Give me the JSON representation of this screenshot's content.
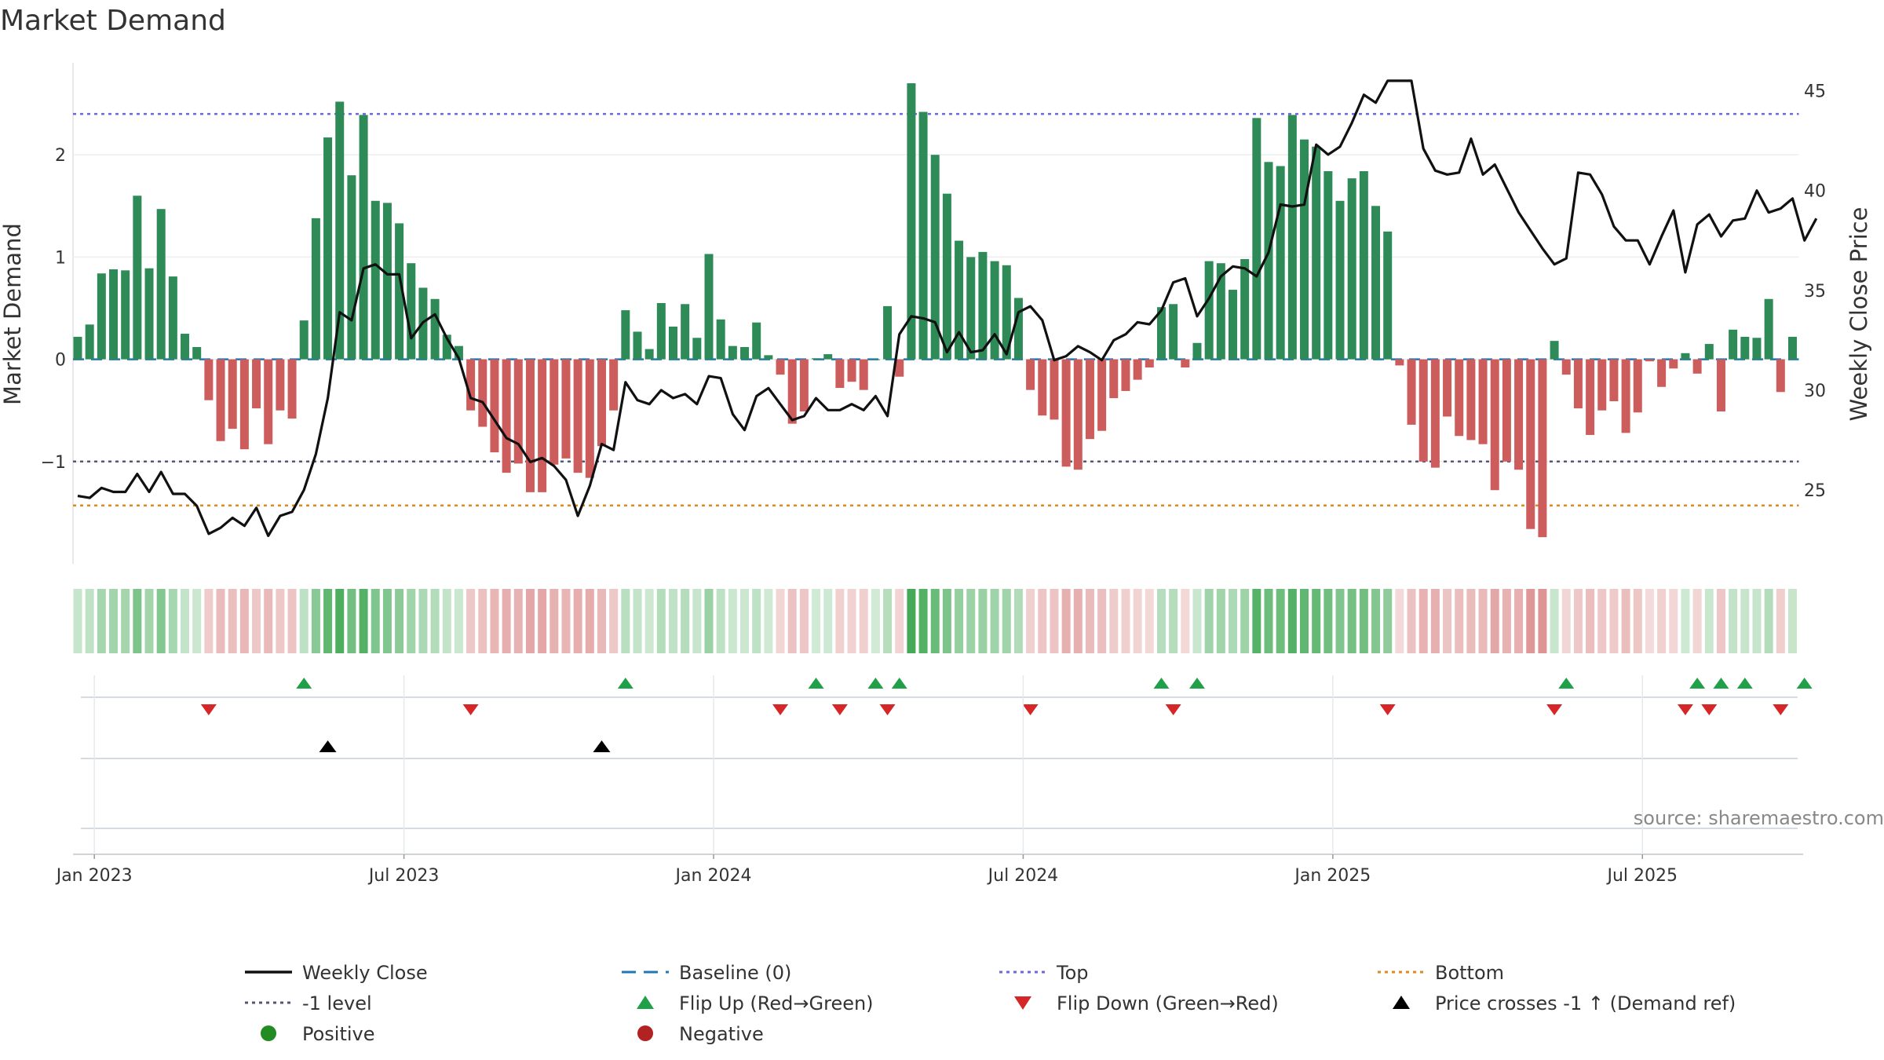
{
  "chart_data": {
    "type": "bar",
    "title": "Market Demand",
    "ylabel_left": "Market Demand",
    "ylabel_right": "Weekly Close Price",
    "ylim_left": [
      -2.0,
      2.9
    ],
    "ylim_right": [
      21.3,
      46.4
    ],
    "left_ticks": [
      {
        "v": 2,
        "t": "2"
      },
      {
        "v": 1,
        "t": "1"
      },
      {
        "v": 0,
        "t": "0"
      },
      {
        "v": -1,
        "t": "−1"
      }
    ],
    "right_ticks": [
      {
        "v": 45,
        "t": "45"
      },
      {
        "v": 40,
        "t": "40"
      },
      {
        "v": 35,
        "t": "35"
      },
      {
        "v": 30,
        "t": "30"
      },
      {
        "v": 25,
        "t": "25"
      }
    ],
    "x_ticks": [
      {
        "i": 1,
        "t": "Jan 2023"
      },
      {
        "i": 27,
        "t": "Jul 2023"
      },
      {
        "i": 53,
        "t": "Jan 2024"
      },
      {
        "i": 79,
        "t": "Jul 2024"
      },
      {
        "i": 105,
        "t": "Jan 2025"
      },
      {
        "i": 131,
        "t": "Jul 2025"
      }
    ],
    "reference_lines": {
      "top": 2.4,
      "minus_one": -1.0,
      "bottom": -1.43,
      "baseline": 0
    },
    "demand": [
      0.22,
      0.34,
      0.84,
      0.88,
      0.87,
      1.6,
      0.89,
      1.47,
      0.81,
      0.25,
      0.12,
      -0.4,
      -0.8,
      -0.68,
      -0.88,
      -0.48,
      -0.83,
      -0.5,
      -0.58,
      0.38,
      1.38,
      2.17,
      2.52,
      1.8,
      2.39,
      1.55,
      1.53,
      1.33,
      0.94,
      0.7,
      0.59,
      0.24,
      0.13,
      -0.5,
      -0.66,
      -0.91,
      -1.11,
      -1.02,
      -1.3,
      -1.3,
      -1.03,
      -0.97,
      -1.11,
      -1.16,
      -0.85,
      -0.5,
      0.48,
      0.27,
      0.1,
      0.55,
      0.32,
      0.54,
      0.21,
      1.03,
      0.39,
      0.13,
      0.12,
      0.36,
      0.04,
      -0.15,
      -0.63,
      -0.51,
      0.01,
      0.05,
      -0.28,
      -0.22,
      -0.3,
      0.0,
      0.52,
      -0.17,
      2.7,
      2.42,
      2.0,
      1.62,
      1.16,
      1.0,
      1.05,
      0.96,
      0.92,
      0.6,
      -0.3,
      -0.55,
      -0.59,
      -1.05,
      -1.08,
      -0.78,
      -0.7,
      -0.38,
      -0.31,
      -0.2,
      -0.08,
      0.51,
      0.54,
      -0.08,
      0.16,
      0.96,
      0.94,
      0.68,
      0.98,
      2.36,
      1.93,
      1.89,
      2.39,
      2.15,
      2.08,
      1.84,
      1.55,
      1.77,
      1.84,
      1.5,
      1.25,
      -0.06,
      -0.64,
      -1.0,
      -1.06,
      -0.56,
      -0.75,
      -0.79,
      -0.83,
      -1.28,
      -1.0,
      -1.08,
      -1.66,
      -1.74,
      0.18,
      -0.15,
      -0.48,
      -0.74,
      -0.5,
      -0.41,
      -0.72,
      -0.52,
      -0.02,
      -0.27,
      -0.09,
      0.06,
      -0.14,
      0.15,
      -0.51,
      0.29,
      0.22,
      0.21,
      0.59,
      -0.32,
      0.22
    ],
    "weekly_close": [
      24.7,
      24.6,
      25.1,
      24.9,
      24.9,
      25.8,
      24.9,
      25.9,
      24.8,
      24.8,
      24.2,
      22.8,
      23.1,
      23.6,
      23.2,
      24.1,
      22.7,
      23.7,
      23.9,
      25.0,
      26.8,
      29.6,
      33.9,
      33.5,
      36.1,
      36.3,
      35.8,
      35.8,
      32.6,
      33.4,
      33.8,
      32.6,
      31.6,
      29.6,
      29.4,
      28.5,
      27.6,
      27.3,
      26.4,
      26.6,
      26.2,
      25.5,
      23.7,
      25.2,
      27.3,
      27.0,
      30.4,
      29.5,
      29.3,
      30.0,
      29.6,
      29.8,
      29.3,
      30.7,
      30.6,
      28.8,
      28.0,
      29.7,
      30.1,
      29.3,
      28.5,
      28.7,
      29.6,
      29.0,
      29.0,
      29.3,
      29.0,
      29.7,
      28.7,
      32.8,
      33.7,
      33.6,
      33.4,
      31.9,
      32.9,
      31.9,
      32.0,
      32.8,
      31.8,
      33.9,
      34.2,
      33.5,
      31.5,
      31.7,
      32.2,
      31.9,
      31.5,
      32.5,
      32.8,
      33.4,
      33.3,
      34.0,
      35.4,
      35.6,
      33.7,
      34.6,
      35.7,
      36.2,
      36.1,
      35.7,
      36.9,
      39.3,
      39.2,
      39.3,
      42.3,
      41.8,
      42.2,
      43.4,
      44.8,
      44.4,
      45.5,
      45.5,
      45.5,
      42.1,
      41.0,
      40.8,
      40.9,
      42.6,
      40.8,
      41.3,
      40.1,
      38.9,
      38.0,
      37.1,
      36.3,
      36.6,
      40.9,
      40.8,
      39.8,
      38.2,
      37.5,
      37.5,
      36.3,
      37.7,
      39.0,
      35.9,
      38.3,
      38.8,
      37.7,
      38.5,
      38.6,
      40.0,
      38.9,
      39.1,
      39.6,
      37.5,
      38.6
    ],
    "flip_up": [
      19,
      46,
      62,
      67,
      69,
      91,
      94,
      125,
      136,
      138,
      140,
      145
    ],
    "flip_down": [
      11,
      33,
      59,
      64,
      68,
      80,
      92,
      110,
      124,
      135,
      137,
      143
    ],
    "price_crosses": [
      21,
      44
    ],
    "legend": [
      {
        "label": "Weekly Close",
        "kind": "line"
      },
      {
        "label": "Baseline (0)",
        "kind": "dash"
      },
      {
        "label": "Top",
        "kind": "dot-top"
      },
      {
        "label": "Bottom",
        "kind": "dot-bottom"
      },
      {
        "label": "-1 level",
        "kind": "dot-minus"
      },
      {
        "label": "Flip Up (Red→Green)",
        "kind": "tri-up"
      },
      {
        "label": "Flip Down (Green→Red)",
        "kind": "tri-down"
      },
      {
        "label": "Price crosses -1 ↑ (Demand ref)",
        "kind": "tri-black"
      },
      {
        "label": "Positive",
        "kind": "dot-green"
      },
      {
        "label": "Negative",
        "kind": "dot-red"
      }
    ],
    "source": "source: sharemaestro.com"
  },
  "colors": {
    "positive": "#2e8b57",
    "negative": "#cd5c5c",
    "price": "#111111",
    "baseline": "#1f77b4",
    "top": "#6a6adb",
    "bottom": "#e08a1e",
    "minus_one": "#555577",
    "flip_up": "#21a04a",
    "flip_down": "#d62728",
    "cross": "#000000",
    "legend_positive": "#228b22",
    "legend_negative": "#b22222"
  }
}
